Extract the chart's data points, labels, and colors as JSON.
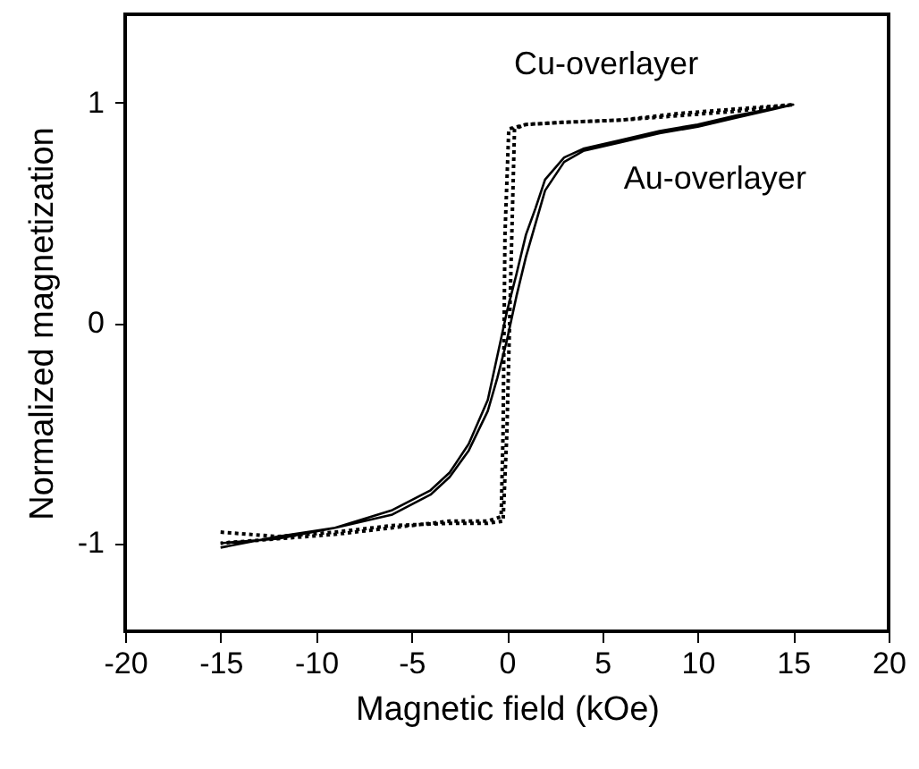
{
  "chart_data": {
    "type": "line",
    "xlabel": "Magnetic field (kOe)",
    "ylabel": "Normalized magnetization",
    "xlim": [
      -20,
      20
    ],
    "xticks": [
      -20,
      -15,
      -10,
      -5,
      0,
      5,
      10,
      15,
      20
    ],
    "ylim": [
      -1.4,
      1.4
    ],
    "yticks": [
      -1,
      0,
      1
    ],
    "series": [
      {
        "name": "Cu-overlayer",
        "color": "#000000",
        "line_style": "dotted",
        "x": [
          -15,
          -12,
          -9,
          -6,
          -3,
          -1,
          -0.2,
          0,
          0.2,
          0.4,
          1,
          3,
          6,
          9,
          12,
          15,
          15,
          12,
          9,
          6,
          3,
          1,
          0.1,
          -0.1,
          -0.2,
          -0.3,
          -1,
          -3,
          -6,
          -9,
          -12,
          -15
        ],
        "values": [
          -0.95,
          -0.97,
          -0.95,
          -0.92,
          -0.91,
          -0.91,
          -0.9,
          -0.5,
          0.2,
          0.88,
          0.9,
          0.91,
          0.92,
          0.95,
          0.97,
          0.99,
          0.99,
          0.96,
          0.94,
          0.92,
          0.91,
          0.9,
          0.88,
          0.4,
          -0.5,
          -0.88,
          -0.9,
          -0.9,
          -0.93,
          -0.96,
          -0.98,
          -1.0
        ]
      },
      {
        "name": "Au-overlayer",
        "color": "#000000",
        "line_style": "solid",
        "x": [
          -15,
          -12,
          -9,
          -6,
          -4,
          -3,
          -2,
          -1,
          -0.5,
          0,
          0.5,
          1,
          1.5,
          2,
          3,
          4,
          6,
          8,
          10,
          12,
          14,
          15,
          15,
          12,
          10,
          8,
          6,
          4,
          3,
          2,
          1.5,
          1,
          0.5,
          0,
          -0.5,
          -1,
          -2,
          -3,
          -4,
          -6,
          -9,
          -12,
          -15
        ],
        "values": [
          -1.02,
          -0.97,
          -0.93,
          -0.87,
          -0.78,
          -0.7,
          -0.58,
          -0.4,
          -0.25,
          -0.08,
          0.12,
          0.3,
          0.45,
          0.6,
          0.73,
          0.78,
          0.82,
          0.86,
          0.89,
          0.93,
          0.97,
          0.99,
          0.99,
          0.94,
          0.9,
          0.87,
          0.83,
          0.79,
          0.75,
          0.65,
          0.52,
          0.4,
          0.22,
          0.05,
          -0.15,
          -0.35,
          -0.55,
          -0.68,
          -0.76,
          -0.85,
          -0.93,
          -0.98,
          -1.0
        ]
      }
    ]
  }
}
